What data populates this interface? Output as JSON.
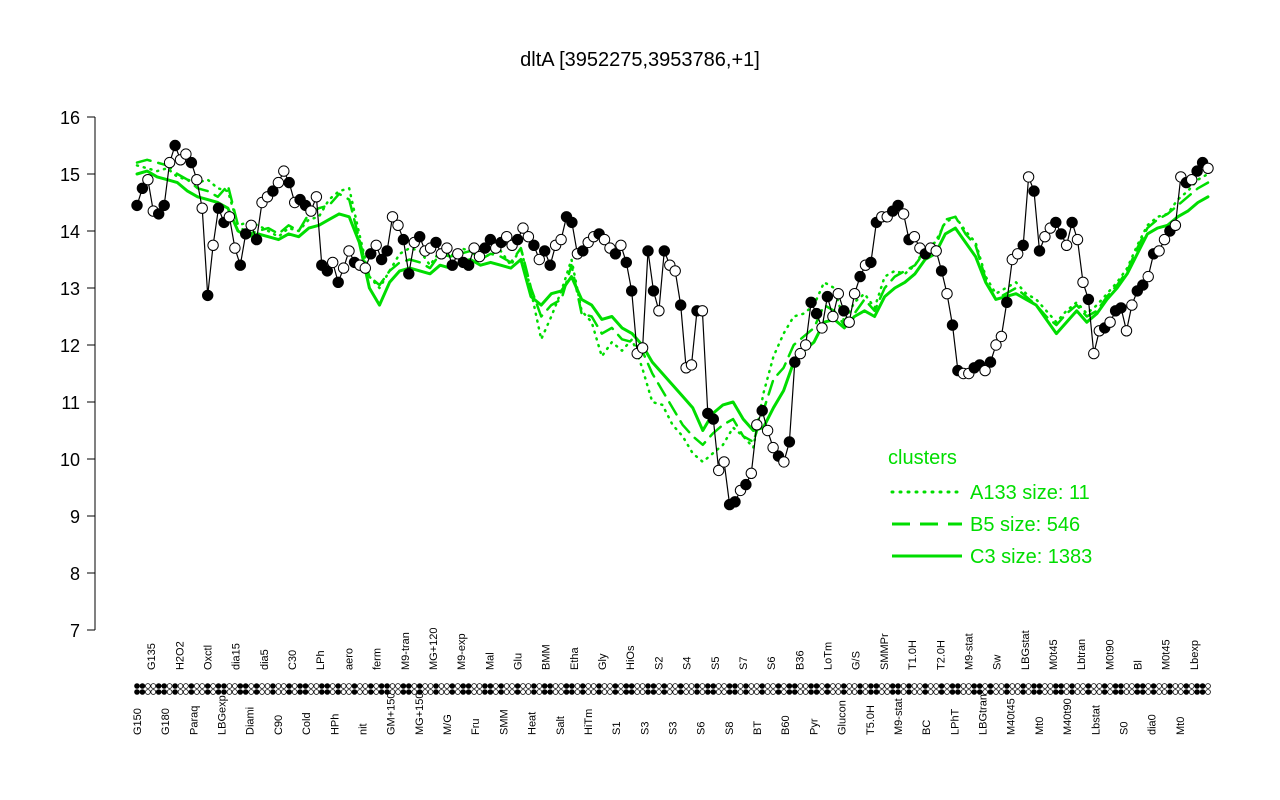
{
  "chart_data": {
    "type": "line",
    "title": "dltA [3952275,3953786,+1]",
    "ylim": [
      7,
      16
    ],
    "yticks": [
      7,
      8,
      9,
      10,
      11,
      12,
      13,
      14,
      15,
      16
    ],
    "x_label_rows": [
      [
        "G150",
        "G180",
        "Paraq",
        "LBGexp",
        "Diami",
        "C90",
        "Cold",
        "HPh",
        "nit",
        "GM+150",
        "MG+150",
        "M/G",
        "Fru",
        "SMM",
        "Heat",
        "Salt",
        "HiTm",
        "S1",
        "S3",
        "S3",
        "S6",
        "S8",
        "BT",
        "B60",
        "Pyr",
        "Glucon",
        "T5.0H",
        "M9-stat",
        "BC",
        "LPhT",
        "LBGtran",
        "M40t45",
        "Mt0",
        "M40t90",
        "Lbstat",
        "S0",
        "dia0",
        "Mt0"
      ],
      [
        "G135",
        "H2O2",
        "Oxctl",
        "dia15",
        "dia5",
        "C30",
        "LPh",
        "aero",
        "ferm",
        "M9-tran",
        "MG+120",
        "M9-exp",
        "Mal",
        "Glu",
        "BMM",
        "Etha",
        "Gly",
        "HiOs",
        "S2",
        "S4",
        "S5",
        "S7",
        "S6",
        "B36",
        "LoTm",
        "G/S",
        "SMMPr",
        "T1.0H",
        "T2.0H",
        "M9-stat",
        "Sw",
        "LBGstat",
        "M0t45",
        "Lbtran",
        "M0t90",
        "Bl",
        "M0t45",
        "Lbexp"
      ]
    ],
    "series": [
      {
        "name": "",
        "style": "points",
        "values": [
          14.45,
          14.75,
          14.9,
          14.35,
          14.3,
          14.45,
          15.2,
          15.5,
          15.25,
          15.35,
          15.2,
          14.9,
          14.4,
          12.87,
          13.75,
          14.4,
          14.15,
          14.25,
          13.7,
          13.4,
          13.95,
          14.1,
          13.85,
          14.5,
          14.6,
          14.7,
          14.85,
          15.05,
          14.85,
          14.5,
          14.55,
          14.45,
          14.35,
          14.6,
          13.4,
          13.3,
          13.45,
          13.1,
          13.35,
          13.65,
          13.45,
          13.4,
          13.35,
          13.6,
          13.75,
          13.5,
          13.65,
          14.25,
          14.1,
          13.85,
          13.25,
          13.8,
          13.9,
          13.65,
          13.7,
          13.8,
          13.6,
          13.7,
          13.4,
          13.6,
          13.45,
          13.4,
          13.7,
          13.55,
          13.7,
          13.85,
          13.7,
          13.8,
          13.9,
          13.75,
          13.85,
          14.05,
          13.9,
          13.75,
          13.5,
          13.65,
          13.4,
          13.75,
          13.85,
          14.25,
          14.15,
          13.6,
          13.65,
          13.8,
          13.9,
          13.95,
          13.85,
          13.7,
          13.6,
          13.75,
          13.45,
          12.95,
          11.85,
          11.95,
          13.65,
          12.95,
          12.6,
          13.65,
          13.4,
          13.3,
          12.7,
          11.6,
          11.65,
          12.6,
          12.6,
          10.8,
          10.7,
          9.8,
          9.95,
          9.2,
          9.25,
          9.45,
          9.55,
          9.75,
          10.6,
          10.85,
          10.5,
          10.2,
          10.05,
          9.95,
          10.3,
          11.7,
          11.85,
          12.0,
          12.75,
          12.55,
          12.3,
          12.85,
          12.5,
          12.9,
          12.6,
          12.4,
          12.9,
          13.2,
          13.4,
          13.45,
          14.15,
          14.25,
          14.25,
          14.35,
          14.45,
          14.3,
          13.85,
          13.9,
          13.7,
          13.6,
          13.7,
          13.65,
          13.3,
          12.9,
          12.35,
          11.55,
          11.5,
          11.5,
          11.6,
          11.65,
          11.55,
          11.7,
          12.0,
          12.15,
          12.75,
          13.5,
          13.6,
          13.75,
          14.95,
          14.7,
          13.65,
          13.9,
          14.05,
          14.15,
          13.95,
          13.75,
          14.15,
          13.85,
          13.1,
          12.8,
          11.85,
          12.25,
          12.3,
          12.4,
          12.6,
          12.65,
          12.25,
          12.7,
          12.95,
          13.05,
          13.2,
          13.6,
          13.65,
          13.85,
          14.0,
          14.1,
          14.95,
          14.85,
          14.9,
          15.05,
          15.2,
          15.1
        ]
      },
      {
        "name": "A133 size: 11",
        "style": "dotted",
        "values": [
          15.15,
          15.1,
          15.05,
          15.1,
          14.95,
          14.9,
          14.85,
          14.9,
          14.75,
          14.7,
          14.1,
          14.15,
          14.1,
          14.0,
          13.9,
          14.05,
          14.0,
          14.2,
          14.25,
          14.55,
          14.7,
          14.75,
          13.95,
          13.2,
          13.0,
          13.3,
          13.6,
          13.7,
          13.65,
          13.4,
          13.65,
          13.55,
          13.7,
          13.65,
          13.5,
          13.6,
          13.65,
          13.4,
          13.7,
          12.95,
          12.1,
          12.5,
          12.95,
          13.5,
          12.6,
          12.4,
          11.8,
          12.05,
          11.9,
          12.1,
          11.6,
          11.0,
          10.95,
          10.6,
          10.4,
          10.1,
          9.95,
          10.1,
          10.25,
          10.55,
          10.4,
          10.2,
          11.15,
          11.8,
          12.2,
          12.5,
          12.55,
          12.7,
          13.1,
          13.0,
          12.4,
          12.75,
          12.9,
          12.65,
          13.2,
          13.3,
          13.25,
          13.4,
          13.7,
          13.8,
          14.15,
          14.25,
          14.0,
          13.8,
          13.2,
          12.9,
          13.0,
          13.1,
          12.9,
          12.8,
          12.6,
          12.4,
          12.6,
          12.75,
          12.55,
          12.7,
          12.9,
          13.1,
          13.35,
          13.75,
          14.1,
          14.25,
          14.3,
          14.55,
          14.7,
          14.9,
          15.0
        ]
      },
      {
        "name": "B5 size: 546",
        "style": "dashed",
        "values": [
          15.2,
          15.25,
          15.2,
          15.15,
          15.0,
          14.9,
          14.75,
          14.7,
          14.6,
          14.8,
          14.1,
          13.95,
          14.0,
          14.05,
          13.95,
          14.1,
          14.0,
          14.3,
          14.4,
          14.45,
          14.65,
          14.55,
          13.85,
          13.2,
          13.05,
          13.3,
          13.45,
          13.5,
          13.45,
          13.35,
          13.6,
          13.55,
          13.6,
          13.65,
          13.5,
          13.6,
          13.55,
          13.45,
          13.7,
          13.0,
          12.5,
          12.7,
          12.8,
          13.4,
          12.55,
          12.5,
          12.2,
          12.3,
          12.1,
          12.05,
          11.9,
          11.5,
          11.2,
          10.9,
          10.6,
          10.4,
          10.25,
          10.45,
          10.6,
          10.7,
          10.4,
          10.3,
          10.85,
          11.4,
          11.6,
          12.0,
          12.15,
          12.3,
          12.7,
          12.6,
          12.35,
          12.55,
          12.8,
          12.6,
          13.0,
          13.2,
          13.3,
          13.4,
          13.65,
          13.7,
          14.2,
          14.25,
          13.95,
          13.75,
          13.15,
          12.8,
          12.9,
          13.0,
          12.85,
          12.7,
          12.5,
          12.35,
          12.55,
          12.7,
          12.5,
          12.6,
          12.85,
          13.05,
          13.3,
          13.7,
          14.05,
          14.2,
          14.3,
          14.45,
          14.6,
          14.75,
          14.85
        ]
      },
      {
        "name": "C3 size: 1383",
        "style": "solid",
        "values": [
          15.0,
          15.05,
          14.95,
          14.9,
          14.85,
          14.7,
          14.6,
          14.55,
          14.5,
          14.4,
          14.0,
          13.9,
          13.95,
          13.9,
          13.85,
          13.95,
          13.9,
          14.05,
          14.1,
          14.2,
          14.3,
          14.25,
          13.8,
          13.0,
          12.7,
          13.1,
          13.3,
          13.35,
          13.3,
          13.25,
          13.4,
          13.35,
          13.45,
          13.5,
          13.4,
          13.45,
          13.4,
          13.35,
          13.5,
          12.85,
          12.7,
          12.9,
          12.95,
          13.2,
          12.8,
          12.7,
          12.45,
          12.5,
          12.3,
          12.2,
          12.0,
          11.7,
          11.5,
          11.3,
          11.1,
          10.9,
          10.5,
          10.8,
          10.95,
          11.0,
          10.7,
          10.5,
          10.55,
          10.9,
          11.2,
          11.7,
          11.9,
          12.05,
          12.4,
          12.45,
          12.3,
          12.5,
          12.6,
          12.5,
          12.85,
          13.0,
          13.1,
          13.25,
          13.5,
          13.6,
          13.95,
          14.05,
          13.8,
          13.55,
          13.1,
          12.8,
          12.85,
          12.9,
          12.8,
          12.7,
          12.45,
          12.2,
          12.4,
          12.6,
          12.4,
          12.55,
          12.8,
          13.0,
          13.25,
          13.6,
          13.95,
          14.05,
          14.1,
          14.25,
          14.35,
          14.5,
          14.6
        ]
      }
    ],
    "legend": {
      "title": "clusters",
      "placement": "right-middle",
      "color": "#00dd00"
    }
  }
}
